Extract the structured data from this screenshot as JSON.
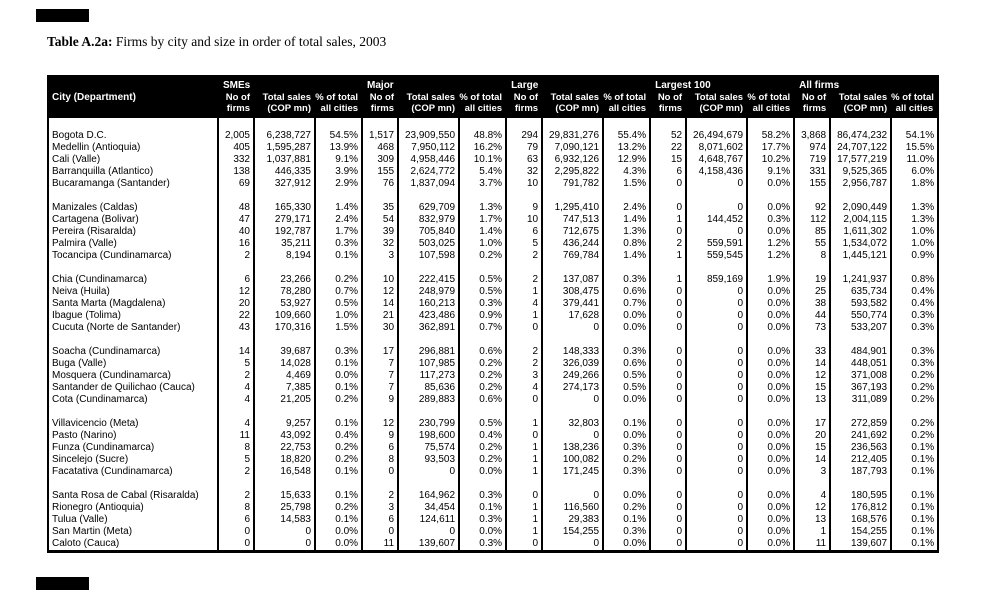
{
  "colors": {
    "header_bg": "#000000",
    "header_text": "#ffffff",
    "body_bg": "#ffffff",
    "text": "#000000"
  },
  "marks": {
    "top": "black-bar",
    "bottom": "black-bar"
  },
  "title": {
    "label": "Table A.2a:",
    "text": "Firms by city and size in order of total sales, 2003"
  },
  "table": {
    "city_header": "City (Department)",
    "groups": [
      "SMEs",
      "Major",
      "Large",
      "Largest 100",
      "All firms"
    ],
    "sub_headers": [
      {
        "line1": "No of",
        "line2": "firms"
      },
      {
        "line1": "Total sales",
        "line2": "(COP mn)"
      },
      {
        "line1": "% of total",
        "line2": "all cities"
      }
    ],
    "row_groups": [
      [
        [
          "Bogota D.C.",
          "2,005",
          "6,238,727",
          "54.5%",
          "1,517",
          "23,909,550",
          "48.8%",
          "294",
          "29,831,276",
          "55.4%",
          "52",
          "26,494,679",
          "58.2%",
          "3,868",
          "86,474,232",
          "54.1%"
        ],
        [
          "Medellin (Antioquia)",
          "405",
          "1,595,287",
          "13.9%",
          "468",
          "7,950,112",
          "16.2%",
          "79",
          "7,090,121",
          "13.2%",
          "22",
          "8,071,602",
          "17.7%",
          "974",
          "24,707,122",
          "15.5%"
        ],
        [
          "Cali (Valle)",
          "332",
          "1,037,881",
          "9.1%",
          "309",
          "4,958,446",
          "10.1%",
          "63",
          "6,932,126",
          "12.9%",
          "15",
          "4,648,767",
          "10.2%",
          "719",
          "17,577,219",
          "11.0%"
        ],
        [
          "Barranquilla (Atlantico)",
          "138",
          "446,335",
          "3.9%",
          "155",
          "2,624,772",
          "5.4%",
          "32",
          "2,295,822",
          "4.3%",
          "6",
          "4,158,436",
          "9.1%",
          "331",
          "9,525,365",
          "6.0%"
        ],
        [
          "Bucaramanga (Santander)",
          "69",
          "327,912",
          "2.9%",
          "76",
          "1,837,094",
          "3.7%",
          "10",
          "791,782",
          "1.5%",
          "0",
          "0",
          "0.0%",
          "155",
          "2,956,787",
          "1.8%"
        ]
      ],
      [
        [
          "Manizales (Caldas)",
          "48",
          "165,330",
          "1.4%",
          "35",
          "629,709",
          "1.3%",
          "9",
          "1,295,410",
          "2.4%",
          "0",
          "0",
          "0.0%",
          "92",
          "2,090,449",
          "1.3%"
        ],
        [
          "Cartagena (Bolivar)",
          "47",
          "279,171",
          "2.4%",
          "54",
          "832,979",
          "1.7%",
          "10",
          "747,513",
          "1.4%",
          "1",
          "144,452",
          "0.3%",
          "112",
          "2,004,115",
          "1.3%"
        ],
        [
          "Pereira (Risaralda)",
          "40",
          "192,787",
          "1.7%",
          "39",
          "705,840",
          "1.4%",
          "6",
          "712,675",
          "1.3%",
          "0",
          "0",
          "0.0%",
          "85",
          "1,611,302",
          "1.0%"
        ],
        [
          "Palmira (Valle)",
          "16",
          "35,211",
          "0.3%",
          "32",
          "503,025",
          "1.0%",
          "5",
          "436,244",
          "0.8%",
          "2",
          "559,591",
          "1.2%",
          "55",
          "1,534,072",
          "1.0%"
        ],
        [
          "Tocancipa (Cundinamarca)",
          "2",
          "8,194",
          "0.1%",
          "3",
          "107,598",
          "0.2%",
          "2",
          "769,784",
          "1.4%",
          "1",
          "559,545",
          "1.2%",
          "8",
          "1,445,121",
          "0.9%"
        ]
      ],
      [
        [
          "Chia (Cundinamarca)",
          "6",
          "23,266",
          "0.2%",
          "10",
          "222,415",
          "0.5%",
          "2",
          "137,087",
          "0.3%",
          "1",
          "859,169",
          "1.9%",
          "19",
          "1,241,937",
          "0.8%"
        ],
        [
          "Neiva (Huila)",
          "12",
          "78,280",
          "0.7%",
          "12",
          "248,979",
          "0.5%",
          "1",
          "308,475",
          "0.6%",
          "0",
          "0",
          "0.0%",
          "25",
          "635,734",
          "0.4%"
        ],
        [
          "Santa Marta (Magdalena)",
          "20",
          "53,927",
          "0.5%",
          "14",
          "160,213",
          "0.3%",
          "4",
          "379,441",
          "0.7%",
          "0",
          "0",
          "0.0%",
          "38",
          "593,582",
          "0.4%"
        ],
        [
          "Ibague (Tolima)",
          "22",
          "109,660",
          "1.0%",
          "21",
          "423,486",
          "0.9%",
          "1",
          "17,628",
          "0.0%",
          "0",
          "0",
          "0.0%",
          "44",
          "550,774",
          "0.3%"
        ],
        [
          "Cucuta (Norte de Santander)",
          "43",
          "170,316",
          "1.5%",
          "30",
          "362,891",
          "0.7%",
          "0",
          "0",
          "0.0%",
          "0",
          "0",
          "0.0%",
          "73",
          "533,207",
          "0.3%"
        ]
      ],
      [
        [
          "Soacha (Cundinamarca)",
          "14",
          "39,687",
          "0.3%",
          "17",
          "296,881",
          "0.6%",
          "2",
          "148,333",
          "0.3%",
          "0",
          "0",
          "0.0%",
          "33",
          "484,901",
          "0.3%"
        ],
        [
          "Buga (Valle)",
          "5",
          "14,028",
          "0.1%",
          "7",
          "107,985",
          "0.2%",
          "2",
          "326,039",
          "0.6%",
          "0",
          "0",
          "0.0%",
          "14",
          "448,051",
          "0.3%"
        ],
        [
          "Mosquera (Cundinamarca)",
          "2",
          "4,469",
          "0.0%",
          "7",
          "117,273",
          "0.2%",
          "3",
          "249,266",
          "0.5%",
          "0",
          "0",
          "0.0%",
          "12",
          "371,008",
          "0.2%"
        ],
        [
          "Santander de Quilichao (Cauca)",
          "4",
          "7,385",
          "0.1%",
          "7",
          "85,636",
          "0.2%",
          "4",
          "274,173",
          "0.5%",
          "0",
          "0",
          "0.0%",
          "15",
          "367,193",
          "0.2%"
        ],
        [
          "Cota (Cundinamarca)",
          "4",
          "21,205",
          "0.2%",
          "9",
          "289,883",
          "0.6%",
          "0",
          "0",
          "0.0%",
          "0",
          "0",
          "0.0%",
          "13",
          "311,089",
          "0.2%"
        ]
      ],
      [
        [
          "Villavicencio (Meta)",
          "4",
          "9,257",
          "0.1%",
          "12",
          "230,799",
          "0.5%",
          "1",
          "32,803",
          "0.1%",
          "0",
          "0",
          "0.0%",
          "17",
          "272,859",
          "0.2%"
        ],
        [
          "Pasto (Narino)",
          "11",
          "43,092",
          "0.4%",
          "9",
          "198,600",
          "0.4%",
          "0",
          "0",
          "0.0%",
          "0",
          "0",
          "0.0%",
          "20",
          "241,692",
          "0.2%"
        ],
        [
          "Funza (Cundinamarca)",
          "8",
          "22,753",
          "0.2%",
          "6",
          "75,574",
          "0.2%",
          "1",
          "138,236",
          "0.3%",
          "0",
          "0",
          "0.0%",
          "15",
          "236,563",
          "0.1%"
        ],
        [
          "Sincelejo (Sucre)",
          "5",
          "18,820",
          "0.2%",
          "8",
          "93,503",
          "0.2%",
          "1",
          "100,082",
          "0.2%",
          "0",
          "0",
          "0.0%",
          "14",
          "212,405",
          "0.1%"
        ],
        [
          "Facatativa (Cundinamarca)",
          "2",
          "16,548",
          "0.1%",
          "0",
          "0",
          "0.0%",
          "1",
          "171,245",
          "0.3%",
          "0",
          "0",
          "0.0%",
          "3",
          "187,793",
          "0.1%"
        ]
      ],
      [
        [
          "Santa Rosa de Cabal (Risaralda)",
          "2",
          "15,633",
          "0.1%",
          "2",
          "164,962",
          "0.3%",
          "0",
          "0",
          "0.0%",
          "0",
          "0",
          "0.0%",
          "4",
          "180,595",
          "0.1%"
        ],
        [
          "Rionegro (Antioquia)",
          "8",
          "25,798",
          "0.2%",
          "3",
          "34,454",
          "0.1%",
          "1",
          "116,560",
          "0.2%",
          "0",
          "0",
          "0.0%",
          "12",
          "176,812",
          "0.1%"
        ],
        [
          "Tulua (Valle)",
          "6",
          "14,583",
          "0.1%",
          "6",
          "124,611",
          "0.3%",
          "1",
          "29,383",
          "0.1%",
          "0",
          "0",
          "0.0%",
          "13",
          "168,576",
          "0.1%"
        ],
        [
          "San Martin (Meta)",
          "0",
          "0",
          "0.0%",
          "0",
          "0",
          "0.0%",
          "1",
          "154,255",
          "0.3%",
          "0",
          "0",
          "0.0%",
          "1",
          "154,255",
          "0.1%"
        ],
        [
          "Caloto (Cauca)",
          "0",
          "0",
          "0.0%",
          "11",
          "139,607",
          "0.3%",
          "0",
          "0",
          "0.0%",
          "0",
          "0",
          "0.0%",
          "11",
          "139,607",
          "0.1%"
        ]
      ]
    ]
  }
}
